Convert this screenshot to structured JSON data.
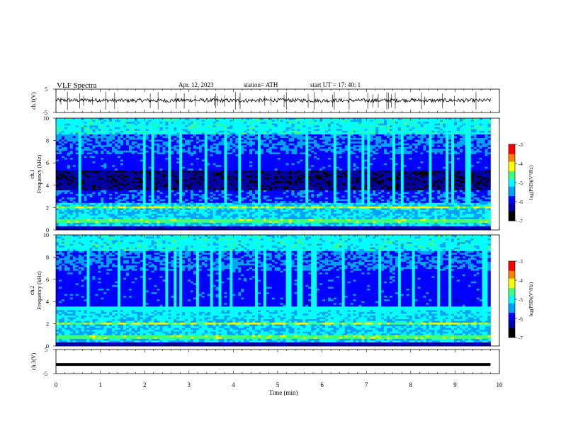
{
  "header": {
    "title": "VLF  Spectra",
    "date": "Apr. 12, 2023",
    "station": "station= ATH",
    "start_time": "start  UT  =    17: 40: 1"
  },
  "chart_data": [
    {
      "type": "line",
      "panel": "ch1-waveform",
      "ylabel": "ch.1(V)",
      "ylim": [
        -5,
        5
      ],
      "yticks": [
        "5",
        "-5"
      ],
      "x": [
        0,
        0.5,
        1,
        1.5,
        2,
        2.5,
        3,
        3.5,
        4,
        4.5,
        5,
        5.5,
        6,
        6.5,
        7,
        7.5,
        8,
        8.5,
        9,
        9.5,
        9.8
      ],
      "values": [
        0.3,
        0.2,
        0.3,
        0.1,
        0.2,
        0.1,
        0.3,
        0.2,
        0.1,
        0.2,
        0.3,
        0.2,
        0.1,
        0.2,
        0.1,
        0.2,
        0.3,
        0.1,
        0.2,
        0.1,
        0.2
      ]
    },
    {
      "type": "heatmap",
      "panel": "ch1-spectrogram",
      "ylabel": "ch.1\nFrequency (kHz)",
      "ylim": [
        0,
        10
      ],
      "yticks": [
        "0",
        "2",
        "4",
        "6",
        "8",
        "10"
      ],
      "colorbar_label": "log(PSD)(V²/Hz)",
      "colorbar_ticks": [
        "-3",
        "-4",
        "-5",
        "-6",
        "-7"
      ],
      "colorbar_range": [
        -7,
        -3
      ]
    },
    {
      "type": "heatmap",
      "panel": "ch2-spectrogram",
      "ylabel": "ch.2\nFrequency (kHz)",
      "ylim": [
        0,
        10
      ],
      "yticks": [
        "0",
        "2",
        "4",
        "6",
        "8",
        "10"
      ],
      "colorbar_label": "log(PSD)(V²/Hz)",
      "colorbar_ticks": [
        "-3",
        "-4",
        "-5",
        "-6",
        "-7"
      ],
      "colorbar_range": [
        -7,
        -3
      ]
    },
    {
      "type": "line",
      "panel": "ch3-waveform",
      "ylabel": "ch.3(V)",
      "ylim": [
        -5,
        5
      ],
      "yticks": [
        "5",
        "-5"
      ],
      "x": [
        0,
        9.8
      ],
      "values": [
        -1.2,
        -1.2
      ]
    }
  ],
  "xaxis": {
    "label": "Time  (min)",
    "ticks": [
      "0",
      "1",
      "2",
      "3",
      "4",
      "5",
      "6",
      "7",
      "8",
      "9",
      "10"
    ],
    "xlim": [
      0,
      10
    ]
  },
  "colors": {
    "colormap": [
      "#000000",
      "#0000a0",
      "#0000ff",
      "#00a0ff",
      "#00ffff",
      "#40ff80",
      "#ffff00",
      "#ff8000",
      "#ff0000",
      "#ffffff"
    ]
  }
}
